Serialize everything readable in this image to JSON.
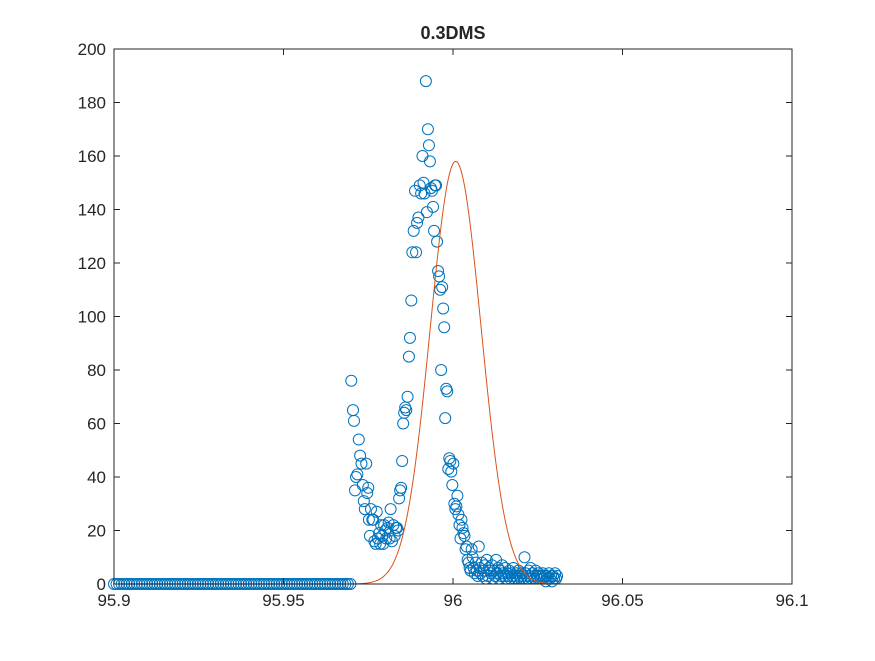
{
  "chart_data": {
    "type": "scatter",
    "title": "0.3DMS",
    "xlabel": "",
    "ylabel": "",
    "xlim": [
      95.9,
      96.1
    ],
    "ylim": [
      0,
      200
    ],
    "x_ticks": [
      95.9,
      95.95,
      96,
      96.05,
      96.1
    ],
    "x_tick_labels": [
      "95.9",
      "95.95",
      "96",
      "96.05",
      "96.1"
    ],
    "y_ticks": [
      0,
      20,
      40,
      60,
      80,
      100,
      120,
      140,
      160,
      180,
      200
    ],
    "y_tick_labels": [
      "0",
      "20",
      "40",
      "60",
      "80",
      "100",
      "120",
      "140",
      "160",
      "180",
      "200"
    ],
    "grid": false,
    "legend": "none",
    "colors": {
      "marker": "#0072bd",
      "fit": "#d95319",
      "axes": "#262626"
    },
    "series": [
      {
        "kind": "markers",
        "marker": "circle",
        "zero_run": {
          "x_start": 95.9,
          "x_end": 95.97,
          "step": 0.00075,
          "y": 0
        },
        "points": [
          [
            95.97,
            76
          ],
          [
            95.9705,
            65
          ],
          [
            95.9708,
            61
          ],
          [
            95.9711,
            35
          ],
          [
            95.9714,
            40
          ],
          [
            95.9718,
            41
          ],
          [
            95.9722,
            54
          ],
          [
            95.9726,
            48
          ],
          [
            95.973,
            45
          ],
          [
            95.9734,
            37
          ],
          [
            95.9737,
            31
          ],
          [
            95.974,
            28
          ],
          [
            95.9744,
            45
          ],
          [
            95.9747,
            34
          ],
          [
            95.975,
            36
          ],
          [
            95.9752,
            24
          ],
          [
            95.9755,
            18
          ],
          [
            95.9758,
            28
          ],
          [
            95.9762,
            24
          ],
          [
            95.9765,
            24
          ],
          [
            95.9768,
            16
          ],
          [
            95.9772,
            15
          ],
          [
            95.9775,
            27
          ],
          [
            95.9778,
            17
          ],
          [
            95.9782,
            19
          ],
          [
            95.9785,
            15
          ],
          [
            95.9788,
            22
          ],
          [
            95.9791,
            18
          ],
          [
            95.9794,
            15
          ],
          [
            95.9797,
            22
          ],
          [
            95.98,
            20
          ],
          [
            95.9803,
            17
          ],
          [
            95.9807,
            21
          ],
          [
            95.981,
            23
          ],
          [
            95.9813,
            17
          ],
          [
            95.9816,
            28
          ],
          [
            95.982,
            16
          ],
          [
            95.9824,
            22
          ],
          [
            95.9828,
            18
          ],
          [
            95.9832,
            21
          ],
          [
            95.9835,
            21
          ],
          [
            95.9838,
            20
          ],
          [
            95.9841,
            32
          ],
          [
            95.9844,
            35
          ],
          [
            95.9847,
            36
          ],
          [
            95.985,
            46
          ],
          [
            95.9853,
            60
          ],
          [
            95.9856,
            64
          ],
          [
            95.9859,
            66
          ],
          [
            95.9862,
            65
          ],
          [
            95.9866,
            70
          ],
          [
            95.987,
            85
          ],
          [
            95.9873,
            92
          ],
          [
            95.9877,
            106
          ],
          [
            95.988,
            124
          ],
          [
            95.9884,
            132
          ],
          [
            95.9888,
            147
          ],
          [
            95.9891,
            124
          ],
          [
            95.9894,
            135
          ],
          [
            95.9898,
            137
          ],
          [
            95.9902,
            149
          ],
          [
            95.9906,
            146
          ],
          [
            95.991,
            160
          ],
          [
            95.9913,
            150
          ],
          [
            95.9916,
            146
          ],
          [
            95.992,
            188
          ],
          [
            95.9923,
            139
          ],
          [
            95.9926,
            170
          ],
          [
            95.9929,
            164
          ],
          [
            95.9932,
            158
          ],
          [
            95.9935,
            148
          ],
          [
            95.9938,
            147
          ],
          [
            95.9941,
            141
          ],
          [
            95.9944,
            132
          ],
          [
            95.9947,
            149
          ],
          [
            95.995,
            149
          ],
          [
            95.9953,
            128
          ],
          [
            95.9956,
            117
          ],
          [
            95.9959,
            115
          ],
          [
            95.9962,
            110
          ],
          [
            95.9965,
            80
          ],
          [
            95.9968,
            111
          ],
          [
            95.9971,
            103
          ],
          [
            95.9974,
            96
          ],
          [
            95.9977,
            62
          ],
          [
            95.998,
            73
          ],
          [
            95.9983,
            72
          ],
          [
            95.9986,
            43
          ],
          [
            95.9989,
            47
          ],
          [
            95.9992,
            46
          ],
          [
            95.9995,
            42
          ],
          [
            95.9998,
            37
          ],
          [
            96.0001,
            45
          ],
          [
            96.0004,
            30
          ],
          [
            96.0007,
            28
          ],
          [
            96.001,
            29
          ],
          [
            96.0013,
            33
          ],
          [
            96.0016,
            26
          ],
          [
            96.0019,
            22
          ],
          [
            96.0022,
            17
          ],
          [
            96.0025,
            24
          ],
          [
            96.0028,
            21
          ],
          [
            96.0031,
            19
          ],
          [
            96.0034,
            18
          ],
          [
            96.0037,
            13
          ],
          [
            96.004,
            14
          ],
          [
            96.0043,
            9
          ],
          [
            96.0046,
            8
          ],
          [
            96.0049,
            6
          ],
          [
            96.0052,
            5
          ],
          [
            96.0055,
            13
          ],
          [
            96.0058,
            10
          ],
          [
            96.0061,
            6
          ],
          [
            96.0064,
            4
          ],
          [
            96.0067,
            8
          ],
          [
            96.007,
            5
          ],
          [
            96.0073,
            3
          ],
          [
            96.0076,
            14
          ],
          [
            96.0079,
            6
          ],
          [
            96.0082,
            4
          ],
          [
            96.0085,
            8
          ],
          [
            96.0088,
            3
          ],
          [
            96.0091,
            5
          ],
          [
            96.0094,
            7
          ],
          [
            96.0097,
            2
          ],
          [
            96.01,
            9
          ],
          [
            96.0103,
            3
          ],
          [
            96.0106,
            6
          ],
          [
            96.0109,
            5
          ],
          [
            96.0112,
            4
          ],
          [
            96.0115,
            7
          ],
          [
            96.0118,
            2
          ],
          [
            96.0121,
            5
          ],
          [
            96.0124,
            3
          ],
          [
            96.0127,
            9
          ],
          [
            96.013,
            4
          ],
          [
            96.0133,
            6
          ],
          [
            96.0136,
            2
          ],
          [
            96.0139,
            5
          ],
          [
            96.0142,
            3
          ],
          [
            96.0145,
            7
          ],
          [
            96.0148,
            4
          ],
          [
            96.0151,
            3
          ],
          [
            96.0154,
            6
          ],
          [
            96.0157,
            2
          ],
          [
            96.016,
            4
          ],
          [
            96.0163,
            3
          ],
          [
            96.0166,
            5
          ],
          [
            96.0169,
            2
          ],
          [
            96.0172,
            4
          ],
          [
            96.0175,
            3
          ],
          [
            96.0178,
            6
          ],
          [
            96.0181,
            2
          ],
          [
            96.0184,
            3
          ],
          [
            96.0187,
            4
          ],
          [
            96.019,
            2
          ],
          [
            96.0193,
            5
          ],
          [
            96.0196,
            3
          ],
          [
            96.0199,
            2
          ],
          [
            96.0202,
            4
          ],
          [
            96.0205,
            3
          ],
          [
            96.0208,
            2
          ],
          [
            96.0211,
            10
          ],
          [
            96.0214,
            4
          ],
          [
            96.0217,
            3
          ],
          [
            96.022,
            2
          ],
          [
            96.0223,
            5
          ],
          [
            96.0226,
            3
          ],
          [
            96.0229,
            6
          ],
          [
            96.0232,
            2
          ],
          [
            96.0235,
            4
          ],
          [
            96.0238,
            3
          ],
          [
            96.0241,
            2
          ],
          [
            96.0244,
            5
          ],
          [
            96.0247,
            3
          ],
          [
            96.025,
            2
          ],
          [
            96.0253,
            4
          ],
          [
            96.0256,
            3
          ],
          [
            96.0259,
            2
          ],
          [
            96.0262,
            3
          ],
          [
            96.0265,
            4
          ],
          [
            96.0268,
            2
          ],
          [
            96.0271,
            3
          ],
          [
            96.0274,
            1
          ],
          [
            96.0277,
            3
          ],
          [
            96.028,
            2
          ],
          [
            96.0283,
            4
          ],
          [
            96.0286,
            2
          ],
          [
            96.0289,
            3
          ],
          [
            96.0292,
            1
          ],
          [
            96.0295,
            3
          ],
          [
            96.0298,
            2
          ],
          [
            96.0301,
            4
          ],
          [
            96.0304,
            2
          ],
          [
            96.0307,
            3
          ]
        ]
      },
      {
        "kind": "line",
        "model": "gaussian",
        "amplitude": 158,
        "center": 96.0008,
        "sigma": 0.0075,
        "x_range": [
          95.97,
          96.1
        ]
      }
    ]
  }
}
